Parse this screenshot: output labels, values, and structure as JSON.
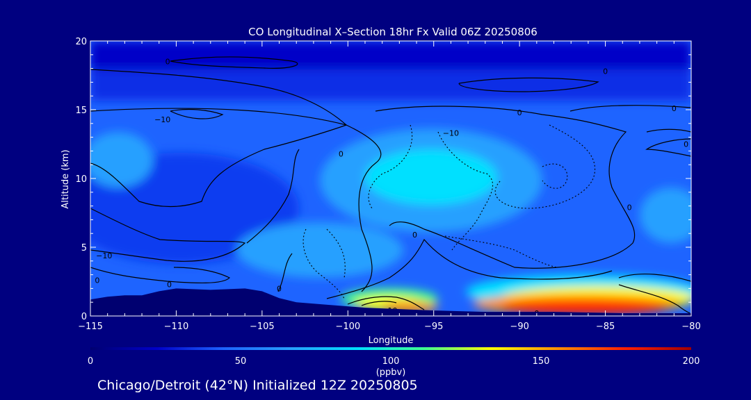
{
  "chart_data": {
    "type": "heatmap",
    "title": "CO Longitudinal X–Section 18hr  Fx Valid 06Z 20250806",
    "xlabel": "Longitude",
    "ylabel": "Altitude (km)",
    "xlim": [
      -115,
      -80
    ],
    "ylim": [
      0,
      20
    ],
    "x_ticks": [
      -115,
      -110,
      -105,
      -100,
      -95,
      -90,
      -85,
      -80
    ],
    "x_tick_labels": [
      "−115",
      "−110",
      "−105",
      "−100",
      "−95",
      "−90",
      "−85",
      "−80"
    ],
    "y_ticks": [
      0,
      5,
      10,
      15,
      20
    ],
    "y_tick_labels": [
      "0",
      "5",
      "10",
      "15",
      "20"
    ],
    "grid": false,
    "colorbar": {
      "units": "(ppbv)",
      "range": [
        0,
        200
      ],
      "ticks": [
        0,
        50,
        100,
        150,
        200
      ],
      "tick_labels": [
        "0",
        "50",
        "100",
        "150",
        "200"
      ],
      "colors": [
        "#000070",
        "#0000c8",
        "#1e64ff",
        "#28a0ff",
        "#00e0ff",
        "#40ff90",
        "#ffff00",
        "#ff9000",
        "#ff2000",
        "#a00000"
      ]
    },
    "contour_labels": [
      {
        "text": "0",
        "lon": -110.5,
        "alt": 18.5
      },
      {
        "text": "0",
        "lon": -85.0,
        "alt": 17.8
      },
      {
        "text": "0",
        "lon": -90.0,
        "alt": 14.8
      },
      {
        "text": "0",
        "lon": -81.0,
        "alt": 15.1
      },
      {
        "text": "−10",
        "lon": -110.8,
        "alt": 14.3
      },
      {
        "text": "−10",
        "lon": -94.0,
        "alt": 13.3
      },
      {
        "text": "0",
        "lon": -100.4,
        "alt": 11.8
      },
      {
        "text": "0",
        "lon": -80.3,
        "alt": 12.5
      },
      {
        "text": "0",
        "lon": -83.6,
        "alt": 7.9
      },
      {
        "text": "0",
        "lon": -96.1,
        "alt": 5.9
      },
      {
        "text": "−10",
        "lon": -114.2,
        "alt": 4.4
      },
      {
        "text": "0",
        "lon": -114.6,
        "alt": 2.6
      },
      {
        "text": "0",
        "lon": -110.4,
        "alt": 2.3
      },
      {
        "text": "0",
        "lon": -104.0,
        "alt": 2.0
      },
      {
        "text": "10",
        "lon": -97.4,
        "alt": 0.4
      },
      {
        "text": "0",
        "lon": -89.0,
        "alt": 0.2
      }
    ],
    "terrain": [
      [
        -115,
        1.2
      ],
      [
        -114,
        1.4
      ],
      [
        -113,
        1.5
      ],
      [
        -112,
        1.5
      ],
      [
        -111,
        1.8
      ],
      [
        -110,
        2.0
      ],
      [
        -108,
        1.9
      ],
      [
        -106,
        2.0
      ],
      [
        -105,
        1.8
      ],
      [
        -104,
        1.3
      ],
      [
        -103,
        1.0
      ],
      [
        -101,
        0.8
      ],
      [
        -99,
        0.6
      ],
      [
        -97,
        0.5
      ],
      [
        -95,
        0.4
      ],
      [
        -92,
        0.3
      ],
      [
        -88,
        0.3
      ],
      [
        -84,
        0.2
      ],
      [
        -80,
        0.2
      ]
    ],
    "note": "Chicago/Detroit (42°N) Initialized 12Z 20250805"
  }
}
